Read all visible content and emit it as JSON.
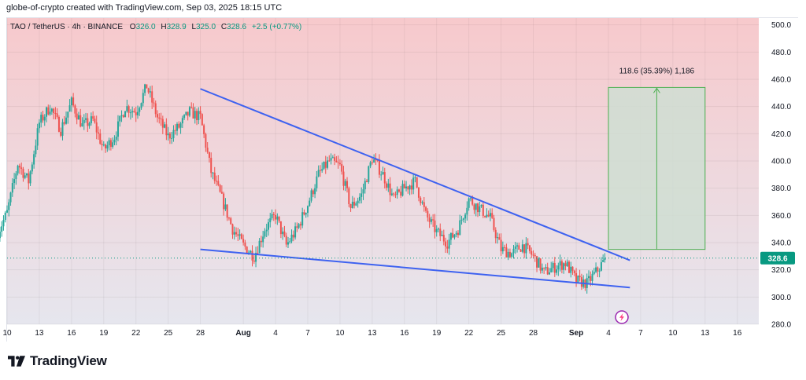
{
  "header": {
    "attribution": "globe-of-crypto created with TradingView.com, Sep 03, 2025 18:15 UTC"
  },
  "legend": {
    "symbol": "TAO / TetherUS · 4h · BINANCE",
    "o_label": "O",
    "o_value": "326.0",
    "h_label": "H",
    "h_value": "328.9",
    "l_label": "L",
    "l_value": "325.0",
    "c_label": "C",
    "c_value": "328.6",
    "change": "+2.5 (+0.77%)"
  },
  "footer": {
    "brand": "TradingView"
  },
  "colors": {
    "up": "#26a69a",
    "down": "#ef5350",
    "trendline": "#3e62f0",
    "bg_top": "#f7c9cc",
    "bg_bottom": "#e6e6ee",
    "target_box": "#cfded2",
    "target_border": "#4caf50",
    "target_arrow": "#4caf50",
    "last_price_bg": "#089981"
  },
  "chart_data": {
    "type": "candlestick",
    "symbol": "TAO / TetherUS",
    "interval": "4h",
    "exchange": "BINANCE",
    "last_price": 328.6,
    "last_price_label": "328.6",
    "y_axis": {
      "ylim": [
        280,
        505
      ],
      "ticks": [
        280,
        300,
        320,
        340,
        360,
        380,
        400,
        420,
        440,
        460,
        480,
        500
      ],
      "tick_labels": [
        "280.0",
        "300.0",
        "320.0",
        "340.0",
        "360.0",
        "380.0",
        "400.0",
        "420.0",
        "440.0",
        "460.0",
        "480.0",
        "500.0"
      ]
    },
    "x_axis": {
      "start": "2025-07-10",
      "end": "2025-09-18",
      "ticks": [
        "2025-07-10",
        "2025-07-13",
        "2025-07-16",
        "2025-07-19",
        "2025-07-22",
        "2025-07-25",
        "2025-07-28",
        "2025-08-01",
        "2025-08-04",
        "2025-08-07",
        "2025-08-10",
        "2025-08-13",
        "2025-08-16",
        "2025-08-19",
        "2025-08-22",
        "2025-08-25",
        "2025-08-28",
        "2025-09-01",
        "2025-09-04",
        "2025-09-07",
        "2025-09-10",
        "2025-09-13",
        "2025-09-16"
      ],
      "tick_labels": [
        "10",
        "13",
        "16",
        "19",
        "22",
        "25",
        "28",
        "Aug",
        "4",
        "7",
        "10",
        "13",
        "16",
        "19",
        "22",
        "25",
        "28",
        "Sep",
        "4",
        "7",
        "10",
        "13",
        "16"
      ]
    },
    "price_path": [
      [
        "2025-07-09",
        345
      ],
      [
        "2025-07-10",
        362
      ],
      [
        "2025-07-11",
        398
      ],
      [
        "2025-07-12",
        385
      ],
      [
        "2025-07-13",
        428
      ],
      [
        "2025-07-14",
        440
      ],
      [
        "2025-07-15",
        423
      ],
      [
        "2025-07-16",
        443
      ],
      [
        "2025-07-17",
        426
      ],
      [
        "2025-07-18",
        430
      ],
      [
        "2025-07-19",
        408
      ],
      [
        "2025-07-20",
        418
      ],
      [
        "2025-07-21",
        440
      ],
      [
        "2025-07-22",
        436
      ],
      [
        "2025-07-23",
        455
      ],
      [
        "2025-07-24",
        432
      ],
      [
        "2025-07-25",
        418
      ],
      [
        "2025-07-26",
        425
      ],
      [
        "2025-07-27",
        436
      ],
      [
        "2025-07-28",
        432
      ],
      [
        "2025-07-29",
        392
      ],
      [
        "2025-07-30",
        372
      ],
      [
        "2025-07-31",
        350
      ],
      [
        "2025-08-01",
        338
      ],
      [
        "2025-08-02",
        330
      ],
      [
        "2025-08-03",
        350
      ],
      [
        "2025-08-04",
        360
      ],
      [
        "2025-08-05",
        338
      ],
      [
        "2025-08-06",
        350
      ],
      [
        "2025-08-07",
        368
      ],
      [
        "2025-08-08",
        390
      ],
      [
        "2025-08-09",
        400
      ],
      [
        "2025-08-10",
        396
      ],
      [
        "2025-08-11",
        366
      ],
      [
        "2025-08-12",
        375
      ],
      [
        "2025-08-13",
        402
      ],
      [
        "2025-08-14",
        390
      ],
      [
        "2025-08-15",
        372
      ],
      [
        "2025-08-16",
        380
      ],
      [
        "2025-08-17",
        385
      ],
      [
        "2025-08-18",
        360
      ],
      [
        "2025-08-19",
        348
      ],
      [
        "2025-08-20",
        340
      ],
      [
        "2025-08-21",
        350
      ],
      [
        "2025-08-22",
        372
      ],
      [
        "2025-08-23",
        365
      ],
      [
        "2025-08-24",
        358
      ],
      [
        "2025-08-25",
        335
      ],
      [
        "2025-08-26",
        332
      ],
      [
        "2025-08-27",
        338
      ],
      [
        "2025-08-28",
        330
      ],
      [
        "2025-08-29",
        318
      ],
      [
        "2025-08-30",
        322
      ],
      [
        "2025-08-31",
        325
      ],
      [
        "2025-09-01",
        312
      ],
      [
        "2025-09-02",
        310
      ],
      [
        "2025-09-03",
        320
      ],
      [
        "2025-09-03T18:00",
        328.6
      ]
    ],
    "annotations": {
      "trendline_upper": {
        "from": [
          "2025-07-28",
          453
        ],
        "to": [
          "2025-09-06",
          327
        ]
      },
      "trendline_lower": {
        "from": [
          "2025-07-28",
          335
        ],
        "to": [
          "2025-09-06",
          307
        ]
      },
      "target_projection": {
        "from_date": "2025-09-04",
        "to_date": "2025-09-13",
        "low": 335,
        "high": 454,
        "label": "118.6 (35.39%) 1,186"
      }
    }
  }
}
